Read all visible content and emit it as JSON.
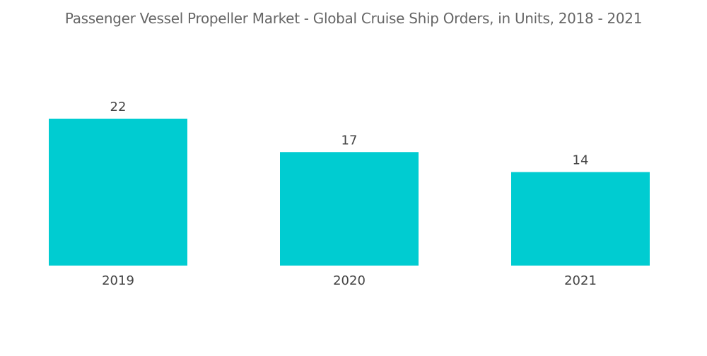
{
  "chart_data": {
    "type": "bar",
    "title": "Passenger Vessel Propeller Market - Global Cruise Ship Orders, in Units, 2018 - 2021",
    "categories": [
      "2019",
      "2020",
      "2021"
    ],
    "values": [
      22,
      17,
      14
    ],
    "xlabel": "",
    "ylabel": "",
    "ylim": [
      0,
      22
    ],
    "grid": false,
    "legend": "none",
    "bar_color": "#00CCD1"
  }
}
